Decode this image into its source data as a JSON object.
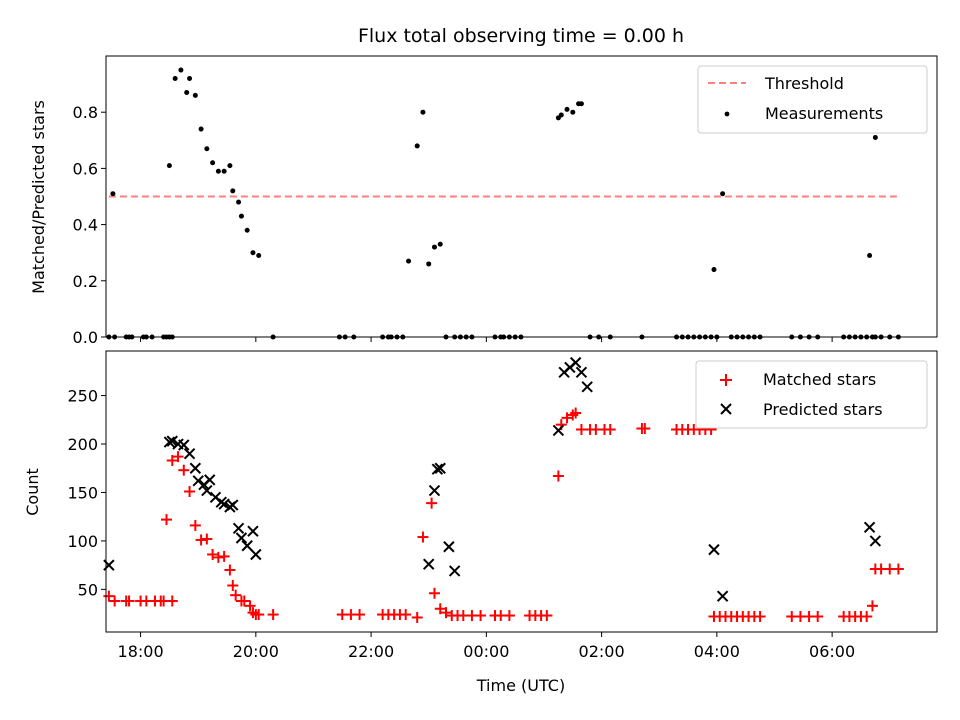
{
  "chart_data": [
    {
      "type": "scatter",
      "title": "Flux total observing time = 0.00 h",
      "xlabel": "",
      "ylabel": "Matched/Predicted stars",
      "xlim": [
        -6.6,
        7.82
      ],
      "ylim": [
        0,
        1.0
      ],
      "xticks": [
        18,
        20,
        22,
        24,
        26,
        28,
        30
      ],
      "yticks": [
        0.0,
        0.2,
        0.4,
        0.6,
        0.8
      ],
      "ytick_labels": [
        "0.0",
        "0.2",
        "0.4",
        "0.6",
        "0.8"
      ],
      "legend_position": "top-right",
      "threshold": {
        "name": "Threshold",
        "y": 0.5,
        "x": [
          -6.55,
          7.15
        ],
        "color": "#ff7f7f",
        "style": "dashed"
      },
      "series": [
        {
          "name": "Measurements",
          "color": "#000000",
          "marker": "dot",
          "x": [
            -6.55,
            -6.48,
            -6.45,
            -6.25,
            -6.2,
            -6.15,
            -5.95,
            -5.9,
            -5.8,
            -5.6,
            -5.55,
            -5.5,
            -5.45,
            -5.5,
            -5.4,
            -5.3,
            -5.2,
            -5.15,
            -5.05,
            -4.95,
            -4.85,
            -4.75,
            -4.65,
            -4.55,
            -4.45,
            -4.4,
            -4.3,
            -4.25,
            -4.15,
            -4.05,
            -3.95,
            -3.7,
            -2.55,
            -2.45,
            -2.3,
            -1.8,
            -1.7,
            -1.65,
            -1.55,
            -1.45,
            -1.35,
            -1.2,
            -1.1,
            -1.0,
            -0.9,
            -0.8,
            -0.7,
            -0.55,
            -0.45,
            -0.35,
            -0.25,
            0.15,
            0.25,
            0.3,
            0.4,
            0.5,
            0.6,
            1.25,
            1.3,
            1.4,
            1.5,
            1.6,
            1.65,
            1.8,
            1.95,
            2.15,
            2.7,
            3.3,
            3.4,
            3.5,
            3.6,
            3.7,
            3.8,
            3.9,
            4.0,
            4.25,
            4.35,
            4.45,
            4.55,
            4.65,
            4.75,
            5.3,
            5.45,
            5.6,
            5.75,
            6.2,
            6.3,
            6.4,
            6.5,
            6.6,
            6.7,
            6.75,
            6.85,
            7.0,
            7.15,
            6.65,
            6.75,
            3.95,
            4.1
          ],
          "y": [
            0.0,
            0.51,
            0.0,
            0.0,
            0.0,
            0.0,
            0.0,
            0.0,
            0.0,
            0.0,
            0.0,
            0.0,
            0.0,
            0.61,
            0.92,
            0.95,
            0.87,
            0.92,
            0.86,
            0.74,
            0.67,
            0.62,
            0.59,
            0.59,
            0.61,
            0.52,
            0.48,
            0.43,
            0.38,
            0.3,
            0.29,
            0.0,
            0.0,
            0.0,
            0.0,
            0.0,
            0.0,
            0.0,
            0.0,
            0.0,
            0.27,
            0.68,
            0.8,
            0.26,
            0.32,
            0.33,
            0.0,
            0.0,
            0.0,
            0.0,
            0.0,
            0.0,
            0.0,
            0.0,
            0.0,
            0.0,
            0.0,
            0.78,
            0.79,
            0.81,
            0.8,
            0.83,
            0.83,
            0.0,
            0.0,
            0.0,
            0.0,
            0.0,
            0.0,
            0.0,
            0.0,
            0.0,
            0.0,
            0.0,
            0.0,
            0.0,
            0.0,
            0.0,
            0.0,
            0.0,
            0.0,
            0.0,
            0.0,
            0.0,
            0.0,
            0.0,
            0.0,
            0.0,
            0.0,
            0.0,
            0.0,
            0.0,
            0.0,
            0.0,
            0.0,
            0.29,
            0.71,
            0.24,
            0.51
          ]
        }
      ]
    },
    {
      "type": "scatter",
      "title": "",
      "xlabel": "Time (UTC)",
      "ylabel": "Count",
      "xlim": [
        -6.6,
        7.82
      ],
      "ylim": [
        6,
        296
      ],
      "xticks": [
        18,
        20,
        22,
        24,
        26,
        28,
        30
      ],
      "xtick_labels": [
        "18:00",
        "20:00",
        "22:00",
        "00:00",
        "02:00",
        "04:00",
        "06:00"
      ],
      "yticks": [
        50,
        100,
        150,
        200,
        250
      ],
      "ytick_labels": [
        "50",
        "100",
        "150",
        "200",
        "250"
      ],
      "legend_position": "top-right",
      "series": [
        {
          "name": "Matched stars",
          "color": "#ff0000",
          "marker": "plus",
          "x": [
            -6.55,
            -6.45,
            -6.25,
            -6.2,
            -6.0,
            -5.9,
            -5.75,
            -5.65,
            -5.6,
            -5.45,
            -5.55,
            -5.45,
            -5.35,
            -5.25,
            -5.15,
            -5.05,
            -4.95,
            -4.85,
            -4.75,
            -4.65,
            -4.55,
            -4.45,
            -4.4,
            -4.35,
            -4.25,
            -4.2,
            -4.1,
            -4.05,
            -4.0,
            -3.95,
            -3.7,
            -2.5,
            -2.35,
            -2.2,
            -1.8,
            -1.7,
            -1.6,
            -1.5,
            -1.4,
            -1.2,
            -1.1,
            -0.95,
            -0.9,
            -0.8,
            -0.7,
            -0.6,
            -0.5,
            -0.4,
            -0.25,
            -0.1,
            0.15,
            0.25,
            0.4,
            0.75,
            0.85,
            0.95,
            1.05,
            1.25,
            1.3,
            1.4,
            1.5,
            1.55,
            1.65,
            1.8,
            1.9,
            2.05,
            2.15,
            2.7,
            2.75,
            3.3,
            3.4,
            3.5,
            3.6,
            3.7,
            3.8,
            3.9,
            3.95,
            4.05,
            4.15,
            4.25,
            4.35,
            4.45,
            4.55,
            4.65,
            4.75,
            5.3,
            5.45,
            5.6,
            5.75,
            6.2,
            6.3,
            6.4,
            6.5,
            6.6,
            6.7,
            6.75,
            6.85,
            7.0,
            7.15
          ],
          "y": [
            43,
            38,
            38,
            38,
            38,
            38,
            38,
            38,
            38,
            38,
            122,
            183,
            187,
            173,
            151,
            116,
            101,
            102,
            86,
            83,
            84,
            70,
            54,
            44,
            38,
            38,
            33,
            26,
            24,
            24,
            24,
            24,
            24,
            24,
            24,
            24,
            24,
            24,
            24,
            21,
            104,
            139,
            46,
            30,
            26,
            23,
            23,
            23,
            23,
            23,
            23,
            23,
            23,
            23,
            23,
            23,
            23,
            167,
            220,
            227,
            230,
            232,
            215,
            215,
            215,
            215,
            215,
            216,
            216,
            215,
            215,
            215,
            215,
            215,
            215,
            215,
            22,
            22,
            22,
            22,
            22,
            22,
            22,
            22,
            22,
            22,
            22,
            22,
            22,
            22,
            22,
            22,
            22,
            22,
            33,
            71,
            71,
            71,
            71
          ]
        },
        {
          "name": "Predicted stars",
          "color": "#000000",
          "marker": "x",
          "x": [
            -6.55,
            -5.5,
            -5.45,
            -5.35,
            -5.25,
            -5.15,
            -5.05,
            -5.0,
            -4.9,
            -4.85,
            -4.8,
            -4.7,
            -4.6,
            -4.55,
            -4.45,
            -4.4,
            -4.3,
            -4.25,
            -4.15,
            -4.05,
            -4.0,
            -1.0,
            -0.9,
            -0.85,
            -0.8,
            -0.65,
            -0.55,
            1.25,
            1.35,
            1.45,
            1.55,
            1.65,
            1.75,
            3.95,
            4.1,
            6.65,
            6.75
          ],
          "y": [
            75,
            202,
            203,
            200,
            199,
            190,
            175,
            162,
            158,
            152,
            163,
            145,
            140,
            138,
            135,
            137,
            113,
            103,
            95,
            110,
            86,
            76,
            152,
            174,
            175,
            94,
            69,
            214,
            274,
            279,
            284,
            274,
            259,
            91,
            43,
            114,
            100
          ]
        }
      ]
    }
  ]
}
